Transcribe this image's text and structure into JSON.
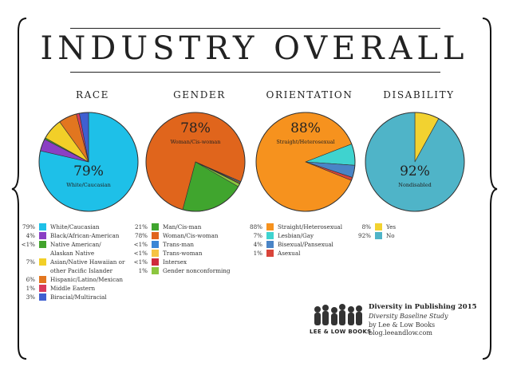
{
  "title": "INDUSTRY OVERALL",
  "chart_data": [
    {
      "type": "pie",
      "title": "RACE",
      "center_label": {
        "value": "79%",
        "caption": "White/Caucasian"
      },
      "slices": [
        {
          "label": "White/Caucasian",
          "value": 79,
          "pct": "79%",
          "color": "#1ec0e8"
        },
        {
          "label": "Black/African-American",
          "value": 4,
          "pct": "4%",
          "color": "#8a3fc4"
        },
        {
          "label": "Native American/\nAlaskan Native",
          "value": 0.5,
          "pct": "<1%",
          "color": "#42a32c"
        },
        {
          "label": "Asian/Native Hawaiian or\nother Pacific Islander",
          "value": 7,
          "pct": "7%",
          "color": "#f2cf28"
        },
        {
          "label": "Hispanic/Latino/Mexican",
          "value": 6,
          "pct": "6%",
          "color": "#e2761f"
        },
        {
          "label": "Middle Eastern",
          "value": 1,
          "pct": "1%",
          "color": "#d93a5c"
        },
        {
          "label": "Biracial/Multiracial",
          "value": 3,
          "pct": "3%",
          "color": "#3f5fd1"
        }
      ]
    },
    {
      "type": "pie",
      "title": "GENDER",
      "center_label": {
        "value": "78%",
        "caption": "Woman/Cis-woman"
      },
      "slices": [
        {
          "label": "Man/Cis-man",
          "value": 21,
          "pct": "21%",
          "color": "#40a52e"
        },
        {
          "label": "Woman/Cis-woman",
          "value": 78,
          "pct": "78%",
          "color": "#e0651c"
        },
        {
          "label": "Trans-man",
          "value": 0.3,
          "pct": "<1%",
          "color": "#3a86d6"
        },
        {
          "label": "Trans-woman",
          "value": 0.3,
          "pct": "<1%",
          "color": "#f6c343"
        },
        {
          "label": "Intersex",
          "value": 0.2,
          "pct": "<1%",
          "color": "#cf2a3c"
        },
        {
          "label": "Gender nonconforming",
          "value": 1,
          "pct": "1%",
          "color": "#8cc63f"
        }
      ]
    },
    {
      "type": "pie",
      "title": "ORIENTATION",
      "center_label": {
        "value": "88%",
        "caption": "Straight/Heterosexual"
      },
      "slices": [
        {
          "label": "Straight/Heterosexual",
          "value": 88,
          "pct": "88%",
          "color": "#f6921e"
        },
        {
          "label": "Lesbian/Gay",
          "value": 7,
          "pct": "7%",
          "color": "#3fd3cf"
        },
        {
          "label": "Bisexual/Pansexual",
          "value": 4,
          "pct": "4%",
          "color": "#4a84c6"
        },
        {
          "label": "Asexual",
          "value": 1,
          "pct": "1%",
          "color": "#d9443a"
        }
      ]
    },
    {
      "type": "pie",
      "title": "DISABILITY",
      "center_label": {
        "value": "92%",
        "caption": "Nondisabled"
      },
      "slices": [
        {
          "label": "Yes",
          "value": 8,
          "pct": "8%",
          "color": "#f2d230"
        },
        {
          "label": "No",
          "value": 92,
          "pct": "92%",
          "color": "#4fb4c8"
        }
      ]
    }
  ],
  "credit": {
    "logo_text": "LEE & LOW BOOKS",
    "line1": "Diversity in Publishing 2015",
    "line2": "Diversity Baseline Study",
    "line3": "by Lee & Low Books",
    "line4": "blog.leeandlow.com"
  }
}
